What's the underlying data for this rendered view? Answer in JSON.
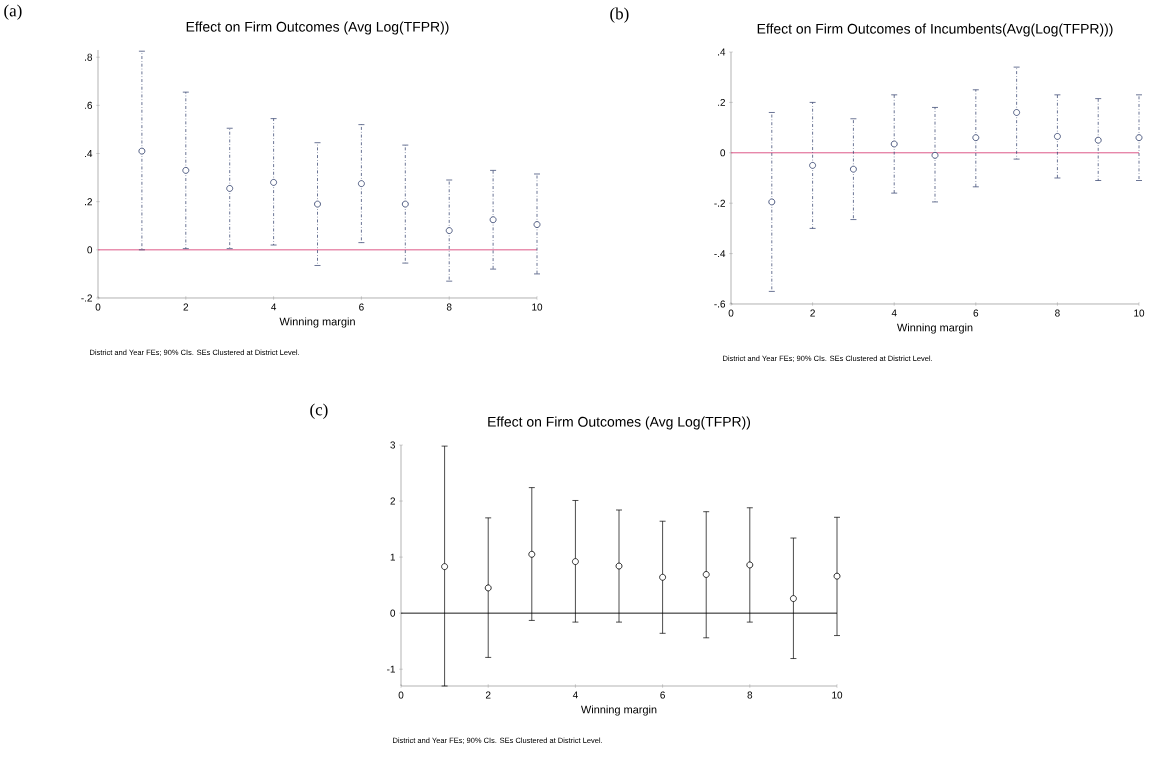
{
  "chart_data": [
    {
      "type": "scatter",
      "title": "Effect on Firm Outcomes (Avg Log(TFPR))",
      "xlabel": "Winning margin",
      "annotations": [
        "(a)",
        "District and Year FEs; 90% CIs. SEs Clustered at District Level."
      ],
      "series": [
        {
          "color": "#2b3a67",
          "x": [
            1,
            2,
            3,
            4,
            5,
            6,
            7,
            8,
            9,
            10
          ],
          "values": [
            0.41,
            0.33,
            0.255,
            0.28,
            0.19,
            0.275,
            0.19,
            0.08,
            0.125,
            0.105
          ],
          "errors": [
            [
              0.0,
              0.825
            ],
            [
              0.005,
              0.655
            ],
            [
              0.005,
              0.505
            ],
            [
              0.02,
              0.545
            ],
            [
              -0.065,
              0.445
            ],
            [
              0.03,
              0.52
            ],
            [
              -0.055,
              0.435
            ],
            [
              -0.13,
              0.29
            ],
            [
              -0.08,
              0.33
            ],
            [
              -0.1,
              0.315
            ]
          ]
        }
      ],
      "xlim": [
        0,
        10
      ],
      "xticks": [
        0,
        2,
        4,
        6,
        8,
        10
      ],
      "ylim": [
        -0.2,
        0.83
      ],
      "yticks": [
        {
          "value": -0.2,
          "label": "-.2"
        },
        0,
        {
          "value": 0.2,
          "label": ".2"
        },
        {
          "value": 0.4,
          "label": ".4"
        },
        {
          "value": 0.6,
          "label": ".6"
        },
        {
          "value": 0.8,
          "label": ".8"
        }
      ],
      "ref_lines": [
        {
          "axis": "y",
          "value": 0,
          "color": "#d9467a"
        }
      ],
      "marker": "circle",
      "line_style": "dashed",
      "grid": false
    },
    {
      "type": "scatter",
      "title": "Effect on Firm Outcomes of Incumbents(Avg(Log(TFPR)))",
      "xlabel": "Winning margin",
      "annotations": [
        "(b)",
        "District and Year FEs; 90% CIs. SEs Clustered at District Level."
      ],
      "series": [
        {
          "color": "#2b3a67",
          "x": [
            1,
            2,
            3,
            4,
            5,
            6,
            7,
            8,
            9,
            10
          ],
          "values": [
            -0.195,
            -0.05,
            -0.065,
            0.035,
            -0.01,
            0.06,
            0.16,
            0.065,
            0.05,
            0.06
          ],
          "errors": [
            [
              -0.55,
              0.16
            ],
            [
              -0.3,
              0.2
            ],
            [
              -0.265,
              0.135
            ],
            [
              -0.16,
              0.23
            ],
            [
              -0.195,
              0.18
            ],
            [
              -0.135,
              0.25
            ],
            [
              -0.025,
              0.34
            ],
            [
              -0.1,
              0.23
            ],
            [
              -0.11,
              0.215
            ],
            [
              -0.11,
              0.23
            ]
          ]
        }
      ],
      "xlim": [
        0,
        10
      ],
      "xticks": [
        0,
        2,
        4,
        6,
        8,
        10
      ],
      "ylim": [
        -0.6,
        0.4
      ],
      "yticks": [
        {
          "value": -0.6,
          "label": "-.6"
        },
        {
          "value": -0.4,
          "label": "-.4"
        },
        {
          "value": -0.2,
          "label": "-.2"
        },
        0,
        {
          "value": 0.2,
          "label": ".2"
        },
        {
          "value": 0.4,
          "label": ".4"
        }
      ],
      "ref_lines": [
        {
          "axis": "y",
          "value": 0,
          "color": "#d9467a"
        }
      ],
      "marker": "circle",
      "line_style": "dashed",
      "grid": false
    },
    {
      "type": "scatter",
      "title": "Effect on Firm Outcomes (Avg Log(TFPR))",
      "xlabel": "Winning margin",
      "annotations": [
        "(c)",
        "District and Year FEs; 90% CIs. SEs Clustered at District Level."
      ],
      "series": [
        {
          "color": "#000000",
          "x": [
            1,
            2,
            3,
            4,
            5,
            6,
            7,
            8,
            9,
            10
          ],
          "values": [
            0.83,
            0.45,
            1.05,
            0.92,
            0.84,
            0.64,
            0.69,
            0.86,
            0.26,
            0.66
          ],
          "errors": [
            [
              -1.3,
              2.98
            ],
            [
              -0.79,
              1.7
            ],
            [
              -0.13,
              2.24
            ],
            [
              -0.16,
              2.01
            ],
            [
              -0.16,
              1.84
            ],
            [
              -0.36,
              1.64
            ],
            [
              -0.44,
              1.81
            ],
            [
              -0.16,
              1.88
            ],
            [
              -0.81,
              1.34
            ],
            [
              -0.4,
              1.71
            ]
          ]
        }
      ],
      "xlim": [
        0,
        10
      ],
      "xticks": [
        0,
        2,
        4,
        6,
        8,
        10
      ],
      "ylim": [
        -1.3,
        3
      ],
      "yticks": [
        -1,
        0,
        1,
        2,
        3
      ],
      "ref_lines": [
        {
          "axis": "y",
          "value": 0,
          "color": "#000000"
        }
      ],
      "marker": "circle",
      "line_style": "solid",
      "grid": false
    }
  ]
}
